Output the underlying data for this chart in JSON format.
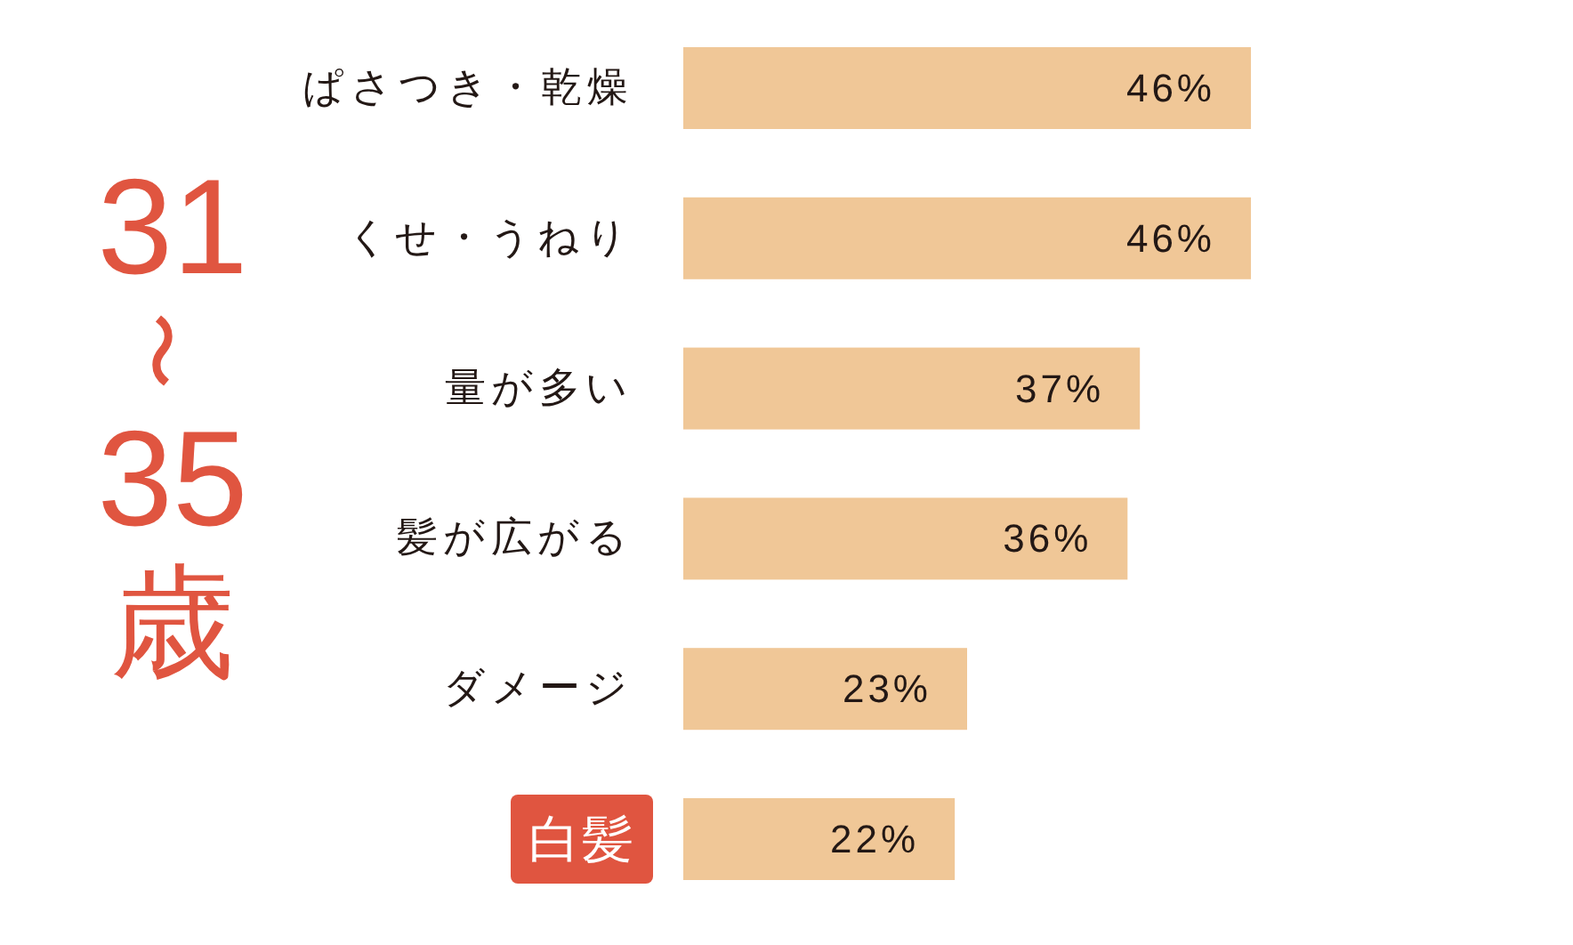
{
  "chart_data": {
    "type": "bar",
    "orientation": "horizontal",
    "title": "31〜35歳",
    "categories": [
      "ぱさつき・乾燥",
      "くせ・うねり",
      "量が多い",
      "髪が広がる",
      "ダメージ",
      "白髪"
    ],
    "values": [
      46,
      46,
      37,
      36,
      23,
      22
    ],
    "color": "#f0c797",
    "value_labels": [
      "46%",
      "46%",
      "37%",
      "36%",
      "23%",
      "22%"
    ]
  }
}
